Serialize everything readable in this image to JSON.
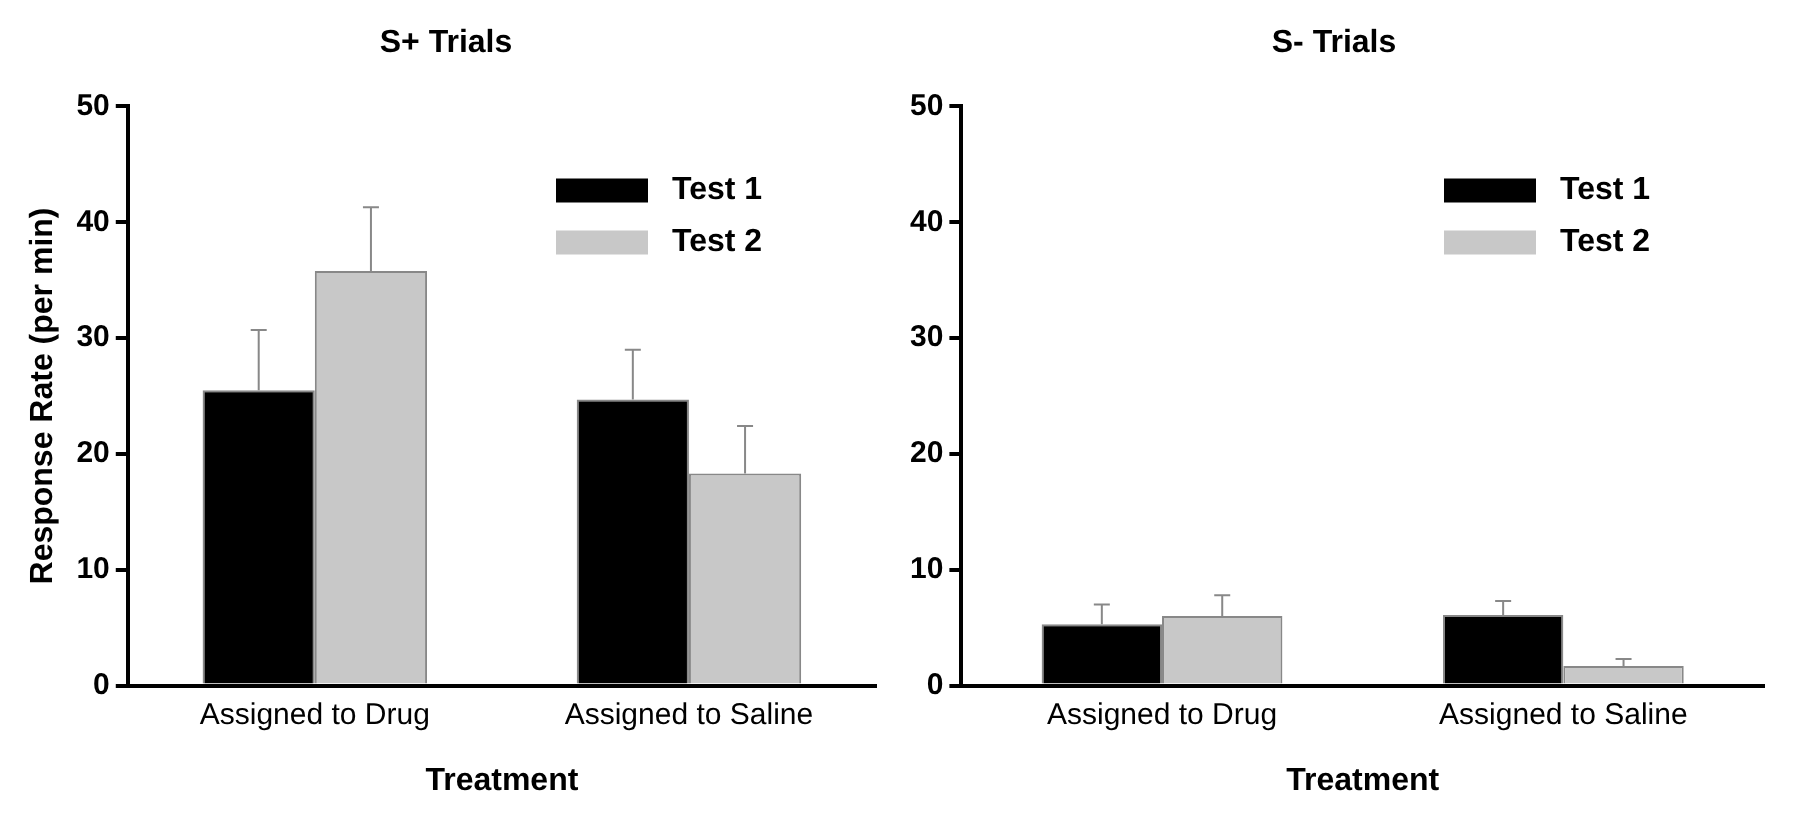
{
  "chart_data": [
    {
      "type": "bar",
      "title": "S+ Trials",
      "xlabel": "Treatment",
      "ylabel": "Response Rate (per min)",
      "categories": [
        "Assigned to Drug",
        "Assigned to Saline"
      ],
      "ylim": [
        0,
        50
      ],
      "yticks": [
        0,
        10,
        20,
        30,
        40,
        50
      ],
      "grid": false,
      "legend": "top right",
      "series": [
        {
          "name": "Test 1",
          "color": "#000000",
          "values": [
            25.5,
            24.7
          ],
          "errors": [
            [
              25.5,
              30.7
            ],
            [
              24.7,
              29
            ]
          ]
        },
        {
          "name": "Test 2",
          "color": "#c8c8c8",
          "values": [
            35.8,
            18.3
          ],
          "errors": [
            [
              35.8,
              41.3
            ],
            [
              18.3,
              22.4
            ]
          ]
        }
      ]
    },
    {
      "type": "bar",
      "title": "S- Trials",
      "xlabel": "Treatment",
      "categories": [
        "Assigned to Drug",
        "Assigned to Saline"
      ],
      "ylim": [
        0,
        50
      ],
      "yticks": [
        0,
        10,
        20,
        30,
        40,
        50
      ],
      "grid": false,
      "legend": "top right",
      "series": [
        {
          "name": "Test 1",
          "color": "#000000",
          "values": [
            5.3,
            6.1
          ],
          "errors": [
            [
              5.3,
              7
            ],
            [
              6.1,
              7.3
            ]
          ]
        },
        {
          "name": "Test 2",
          "color": "#c8c8c8",
          "values": [
            6,
            1.7
          ],
          "errors": [
            [
              6,
              7.8
            ],
            [
              1.7,
              2.3
            ]
          ]
        }
      ]
    }
  ]
}
